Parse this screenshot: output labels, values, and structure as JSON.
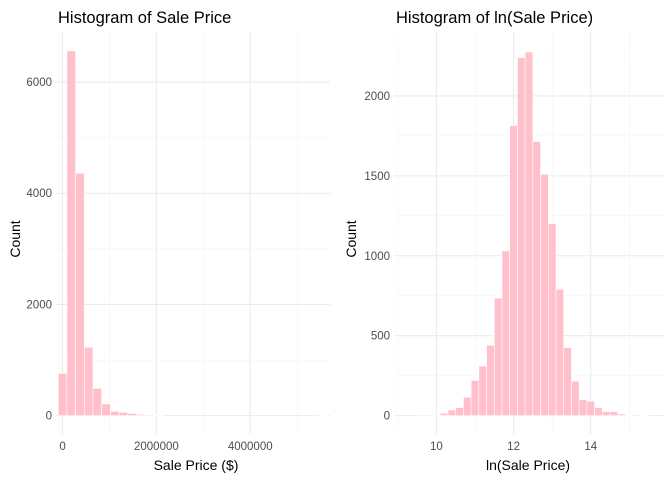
{
  "chart_data": [
    {
      "type": "bar",
      "title": "Histogram of Sale Price",
      "xlabel": "Sale Price ($)",
      "ylabel": "Count",
      "bar_color": "#FFC0CB",
      "grid": true,
      "legend": "none",
      "xlim": [
        -140000,
        5700000
      ],
      "ylim": [
        -330,
        6900
      ],
      "xticks": [
        0,
        2000000,
        4000000
      ],
      "xtick_labels": [
        "0",
        "2000000",
        "4000000"
      ],
      "yticks": [
        0,
        2000,
        4000,
        6000
      ],
      "ytick_labels": [
        "0",
        "2000",
        "4000",
        "6000"
      ],
      "bin_width": 185000,
      "x": [
        0,
        185000,
        370000,
        555000,
        740000,
        925000,
        1110000,
        1295000,
        1480000,
        1665000,
        1850000,
        2035000,
        5550000
      ],
      "values": [
        760,
        6560,
        4360,
        1230,
        490,
        210,
        80,
        60,
        40,
        25,
        15,
        8,
        4
      ]
    },
    {
      "type": "bar",
      "title": "Histogram of ln(Sale Price)",
      "xlabel": "ln(Sale Price)",
      "ylabel": "Count",
      "bar_color": "#FFC0CB",
      "grid": true,
      "legend": "none",
      "xlim": [
        8.9,
        15.9
      ],
      "ylim": [
        -115,
        2400
      ],
      "xticks": [
        10,
        12,
        14
      ],
      "xtick_labels": [
        "10",
        "12",
        "14"
      ],
      "yticks": [
        0,
        500,
        1000,
        1500,
        2000
      ],
      "ytick_labels": [
        "0",
        "500",
        "1000",
        "1500",
        "2000"
      ],
      "bin_width": 0.2,
      "x": [
        9.6,
        9.8,
        10.0,
        10.2,
        10.4,
        10.6,
        10.8,
        11.0,
        11.2,
        11.4,
        11.6,
        11.8,
        12.0,
        12.2,
        12.4,
        12.6,
        12.8,
        13.0,
        13.2,
        13.4,
        13.6,
        13.8,
        14.0,
        14.2,
        14.4,
        14.6,
        14.8,
        15.0,
        15.4
      ],
      "values": [
        5,
        5,
        2,
        15,
        35,
        50,
        115,
        220,
        310,
        440,
        735,
        1030,
        1815,
        2240,
        2275,
        1715,
        1510,
        1200,
        790,
        425,
        215,
        100,
        90,
        50,
        25,
        25,
        10,
        3,
        3
      ]
    }
  ]
}
